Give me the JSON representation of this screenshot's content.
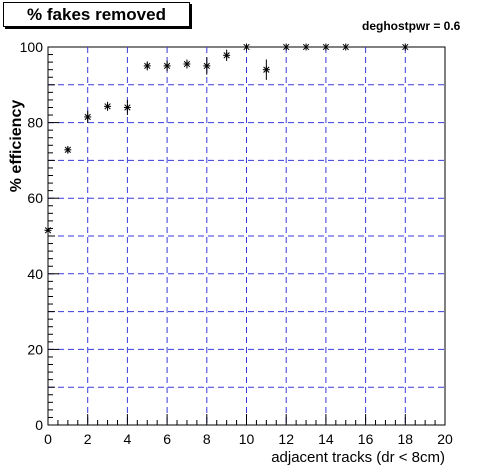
{
  "chart_data": {
    "type": "scatter",
    "title": "% fakes removed",
    "annotation": "deghostpwr = 0.6",
    "xlabel": "adjacent tracks (dr < 8cm)",
    "ylabel": "% efficiency",
    "xlim": [
      0,
      20
    ],
    "ylim": [
      0,
      100
    ],
    "x_ticks": [
      0,
      2,
      4,
      6,
      8,
      10,
      12,
      14,
      16,
      18,
      20
    ],
    "y_ticks": [
      0,
      20,
      40,
      60,
      80,
      100
    ],
    "grid": true,
    "series": [
      {
        "marker": "star",
        "color": "#000000",
        "x": [
          0,
          1,
          2,
          3,
          4,
          5,
          6,
          7,
          8,
          9,
          10,
          11,
          12,
          13,
          14,
          15,
          18
        ],
        "y": [
          51.5,
          72.8,
          81.5,
          84.3,
          84.0,
          95.0,
          95.0,
          95.5,
          95.0,
          97.8,
          100,
          94.0,
          100,
          100,
          100,
          100,
          100
        ],
        "err": [
          0.6,
          1.0,
          1.6,
          1.2,
          2.0,
          1.2,
          1.4,
          1.2,
          2.3,
          1.5,
          0,
          2.7,
          0,
          0,
          0,
          0,
          0
        ]
      }
    ]
  }
}
